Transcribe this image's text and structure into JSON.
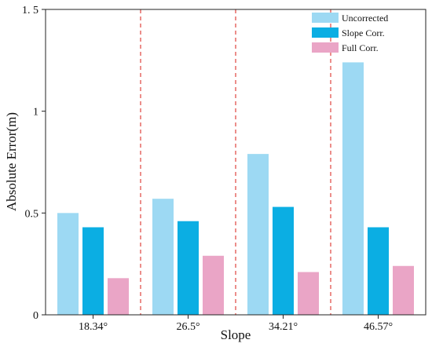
{
  "chart_data": {
    "type": "bar",
    "categories": [
      "18.34°",
      "26.5°",
      "34.21°",
      "46.57°"
    ],
    "series": [
      {
        "name": "Uncorrected",
        "color": "#9dd9f3",
        "values": [
          0.5,
          0.57,
          0.79,
          1.24
        ]
      },
      {
        "name": "Slope Corr.",
        "color": "#0baee3",
        "values": [
          0.43,
          0.46,
          0.53,
          0.43
        ]
      },
      {
        "name": "Full Corr.",
        "color": "#eaa5c6",
        "values": [
          0.18,
          0.29,
          0.21,
          0.24
        ]
      }
    ],
    "xlabel": "Slope",
    "ylabel": "Absolute Error(m)",
    "ylim": [
      0,
      1.5
    ],
    "yticks": [
      0,
      0.5,
      1,
      1.5
    ],
    "ytick_labels": [
      "0",
      "0.5",
      "1",
      "1. 5"
    ],
    "separator_color": "#e0443e",
    "legend_position": "top-right",
    "grid": false
  }
}
